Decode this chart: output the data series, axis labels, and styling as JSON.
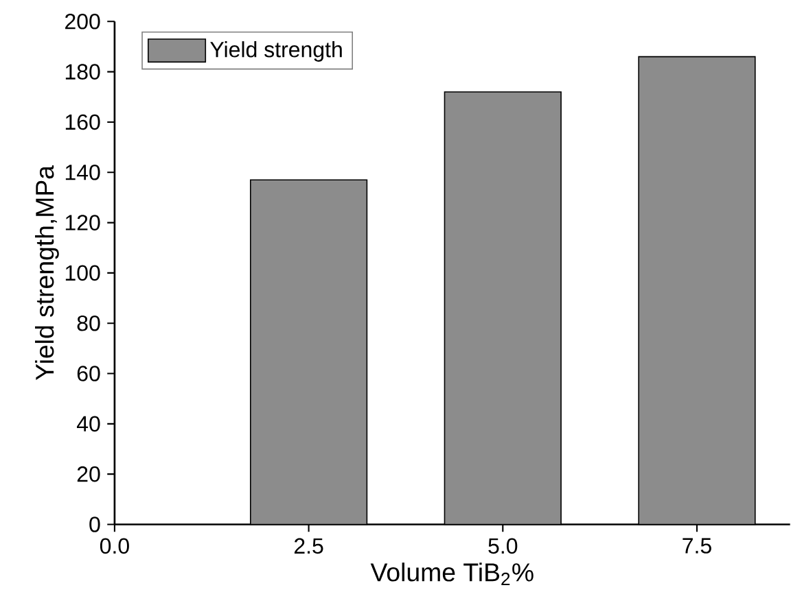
{
  "chart_data": {
    "type": "bar",
    "xlabel": "Volume TiB$_{2}$%",
    "ylabel": "Yield strength,MPa",
    "x": [
      2.5,
      5.0,
      7.5
    ],
    "series": [
      {
        "name": "Yield strength",
        "color": "#8c8c8c",
        "values": [
          137,
          172,
          186
        ]
      }
    ],
    "xlim": [
      0,
      8.7
    ],
    "xticks": [
      {
        "value": 0,
        "label": "0.0"
      },
      2.5,
      {
        "value": 5,
        "label": "5.0"
      },
      7.5
    ],
    "ylim": [
      0,
      200
    ],
    "yticks": [
      0,
      20,
      40,
      60,
      80,
      100,
      120,
      140,
      160,
      180,
      200
    ],
    "legend": "top left"
  }
}
